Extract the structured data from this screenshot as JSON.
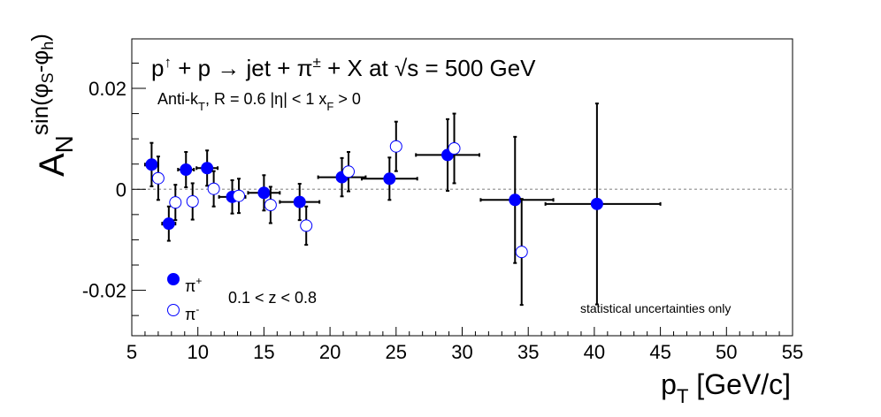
{
  "chart_data": {
    "type": "scatter",
    "title": "p↑ + p → jet + π± + X at √s = 500 GeV",
    "subtitle": "Anti-kT, R = 0.6   |η| < 1   xF > 0",
    "xlabel": "pT [GeV/c]",
    "ylabel": "AN sin(φS-φh)",
    "xlim": [
      5,
      55
    ],
    "ylim": [
      -0.029,
      0.0298
    ],
    "x_ticks": [
      5,
      10,
      15,
      20,
      25,
      30,
      35,
      40,
      45,
      50,
      55
    ],
    "y_ticks": [
      -0.02,
      0,
      0.02
    ],
    "y_tick_labels": [
      "-0.02",
      "0",
      "0.02"
    ],
    "zero_line": true,
    "legend_position": "bottom-left",
    "z_cut_label": "0.1 < z < 0.8",
    "annotation": "statistical uncertainties only",
    "annotation_color": "#ff0000",
    "series": [
      {
        "name": "π+",
        "marker": "filled-circle",
        "color": "#0000ff",
        "points": [
          {
            "x": 6.5,
            "y": 0.0049,
            "xerr": [
              0.5,
              0.5
            ],
            "yerr": 0.0043
          },
          {
            "x": 7.8,
            "y": -0.0068,
            "xerr": [
              0.5,
              0.5
            ],
            "yerr": 0.0034
          },
          {
            "x": 9.1,
            "y": 0.0039,
            "xerr": [
              0.6,
              0.6
            ],
            "yerr": 0.0035
          },
          {
            "x": 10.7,
            "y": 0.0042,
            "xerr": [
              0.8,
              0.8
            ],
            "yerr": 0.0035
          },
          {
            "x": 12.6,
            "y": -0.0015,
            "xerr": [
              1.0,
              1.0
            ],
            "yerr": 0.0033
          },
          {
            "x": 15.0,
            "y": -0.0007,
            "xerr": [
              1.2,
              1.2
            ],
            "yerr": 0.0035
          },
          {
            "x": 17.7,
            "y": -0.0025,
            "xerr": [
              1.5,
              1.5
            ],
            "yerr": 0.0036
          },
          {
            "x": 20.9,
            "y": 0.0024,
            "xerr": [
              1.8,
              1.8
            ],
            "yerr": 0.0038
          },
          {
            "x": 24.5,
            "y": 0.0021,
            "xerr": [
              2.1,
              2.1
            ],
            "yerr": 0.0042
          },
          {
            "x": 28.9,
            "y": 0.0068,
            "xerr": [
              2.4,
              2.4
            ],
            "yerr": 0.0071
          },
          {
            "x": 34.0,
            "y": -0.0021,
            "xerr": [
              2.6,
              2.9
            ],
            "yerr": 0.0125
          },
          {
            "x": 40.2,
            "y": -0.0029,
            "xerr": [
              3.9,
              4.8
            ],
            "yerr": 0.0199
          }
        ]
      },
      {
        "name": "π-",
        "marker": "open-circle",
        "color": "#0000ff",
        "points": [
          {
            "x": 7.0,
            "y": 0.0022,
            "yerr": 0.0043
          },
          {
            "x": 8.3,
            "y": -0.0026,
            "yerr": 0.0035
          },
          {
            "x": 9.6,
            "y": -0.0024,
            "yerr": 0.0036
          },
          {
            "x": 11.2,
            "y": 0.0001,
            "yerr": 0.0035
          },
          {
            "x": 13.1,
            "y": -0.0013,
            "yerr": 0.0034
          },
          {
            "x": 15.5,
            "y": -0.0031,
            "yerr": 0.0036
          },
          {
            "x": 18.2,
            "y": -0.0072,
            "yerr": 0.0038
          },
          {
            "x": 21.4,
            "y": 0.0035,
            "yerr": 0.0039
          },
          {
            "x": 25.0,
            "y": 0.0085,
            "yerr": 0.0049
          },
          {
            "x": 29.4,
            "y": 0.0081,
            "yerr": 0.0069
          },
          {
            "x": 34.5,
            "y": -0.0124,
            "yerr": 0.0105
          },
          {
            "x": 40.2,
            "y": -0.0029,
            "yerr": 0.0199,
            "hidden": true
          }
        ]
      }
    ]
  }
}
